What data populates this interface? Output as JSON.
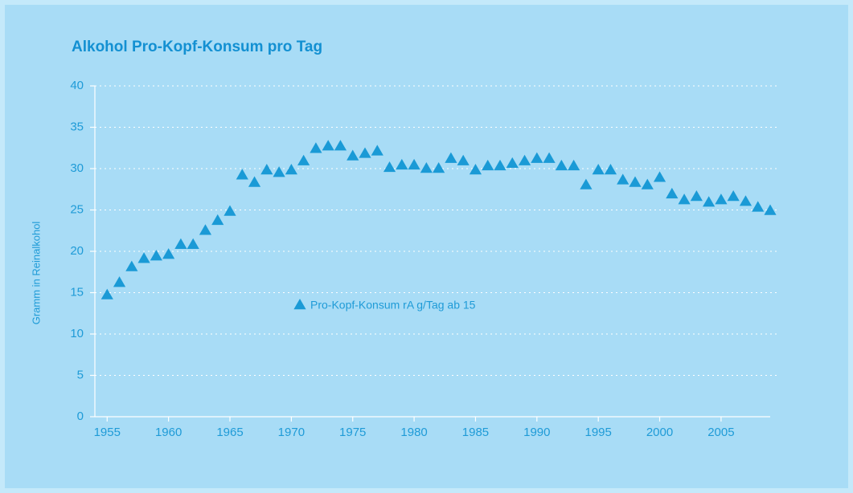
{
  "chart_data": {
    "type": "scatter",
    "title": "Alkohol Pro-Kopf-Konsum pro Tag",
    "y_label": "Gramm in Reinalkohol",
    "x": [
      1955,
      1956,
      1957,
      1958,
      1959,
      1960,
      1961,
      1962,
      1963,
      1964,
      1965,
      1966,
      1967,
      1968,
      1969,
      1970,
      1971,
      1972,
      1973,
      1974,
      1975,
      1976,
      1977,
      1978,
      1979,
      1980,
      1981,
      1982,
      1983,
      1984,
      1985,
      1986,
      1987,
      1988,
      1989,
      1990,
      1991,
      1992,
      1993,
      1994,
      1995,
      1996,
      1997,
      1998,
      1999,
      2000,
      2001,
      2002,
      2003,
      2004,
      2005,
      2006,
      2007,
      2008,
      2009
    ],
    "series": [
      {
        "name": "Pro-Kopf-Konsum rA g/Tag ab 15",
        "color": "#1a9ad6",
        "values": [
          14.7,
          16.2,
          18.1,
          19.1,
          19.4,
          19.6,
          20.8,
          20.8,
          22.5,
          23.7,
          24.8,
          29.2,
          28.3,
          29.8,
          29.5,
          29.8,
          30.9,
          32.4,
          32.7,
          32.7,
          31.5,
          31.8,
          32.1,
          30.1,
          30.4,
          30.4,
          30.0,
          30.0,
          31.2,
          30.9,
          29.8,
          30.3,
          30.3,
          30.6,
          30.9,
          31.2,
          31.2,
          30.3,
          30.3,
          28.0,
          29.8,
          29.8,
          28.6,
          28.3,
          28.0,
          28.9,
          26.9,
          26.2,
          26.6,
          25.9,
          26.2,
          26.6,
          26.0,
          25.3,
          24.9
        ]
      }
    ],
    "xlim": [
      1954,
      2009
    ],
    "xticks": [
      1955,
      1960,
      1965,
      1970,
      1975,
      1980,
      1985,
      1990,
      1995,
      2000,
      2005
    ],
    "ylim": [
      0,
      40
    ],
    "yticks": [
      0,
      5,
      10,
      15,
      20,
      25,
      30,
      35,
      40
    ],
    "grid": true,
    "legend": "center"
  }
}
